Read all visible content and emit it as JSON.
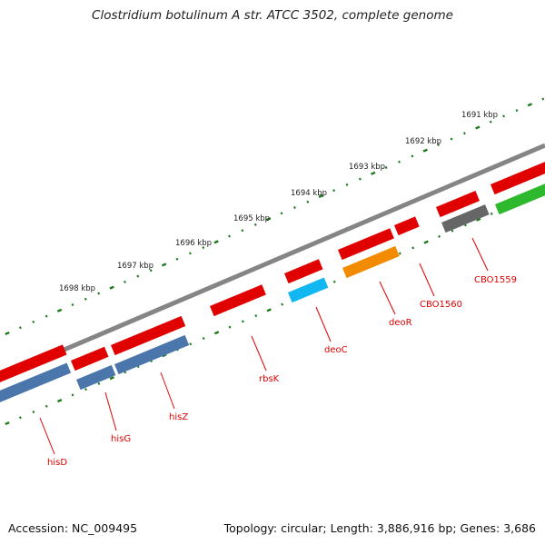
{
  "title": "Clostridium botulinum A str. ATCC 3502, complete genome",
  "footer": {
    "accession": "Accession: NC_009495",
    "summary": "Topology: circular; Length: 3,886,916 bp; Genes: 3,686"
  },
  "colors": {
    "ticks": "#1a7a1a",
    "backbone": "#808080",
    "label": "#e00000"
  },
  "ruler": {
    "labels": [
      "1691 kbp",
      "1692 kbp",
      "1693 kbp",
      "1694 kbp",
      "1695 kbp",
      "1696 kbp",
      "1697 kbp",
      "1698 kbp"
    ]
  },
  "genes": [
    {
      "label": "hisD",
      "color": "#e00000"
    },
    {
      "label": "hisG",
      "color": "#e00000"
    },
    {
      "label": "hisZ",
      "color": "#e00000"
    },
    {
      "label": "rbsK",
      "color": "#e00000"
    },
    {
      "label": "deoC",
      "color": "#e00000"
    },
    {
      "label": "deoR",
      "color": "#e00000"
    },
    {
      "label": "CBO1560",
      "color": "#e00000"
    },
    {
      "label": "CBO1559",
      "color": "#e00000"
    }
  ]
}
